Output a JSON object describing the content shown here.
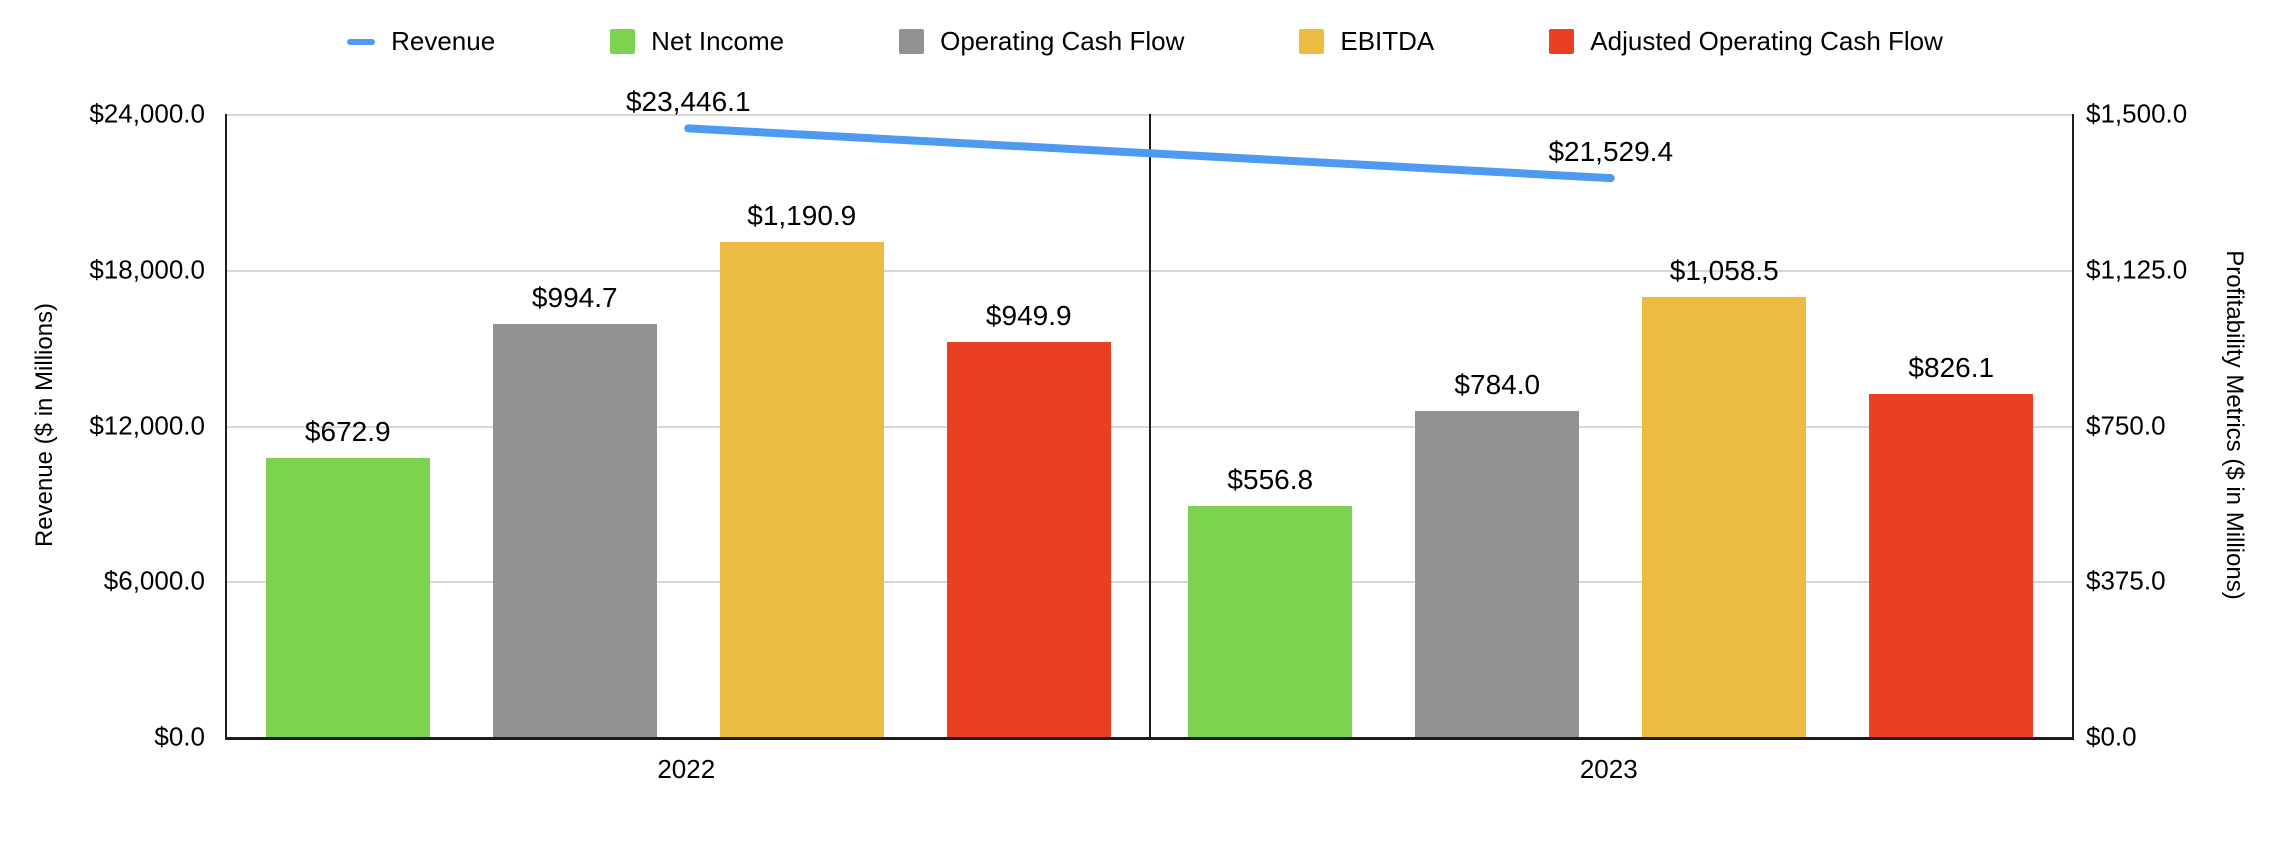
{
  "legend": {
    "items": [
      {
        "label": "Revenue",
        "swatch": "line",
        "color": "#4D9AF0"
      },
      {
        "label": "Net Income",
        "swatch": "square",
        "color": "#7DD24F"
      },
      {
        "label": "Operating Cash Flow",
        "swatch": "square",
        "color": "#929292"
      },
      {
        "label": "EBITDA",
        "swatch": "square",
        "color": "#ECBC42"
      },
      {
        "label": "Adjusted Operating Cash Flow",
        "swatch": "square",
        "color": "#E94023"
      }
    ]
  },
  "chart_data": {
    "type": "bar",
    "subtype": "combo-bar-line-dual-axis",
    "categories": [
      "2022",
      "2023"
    ],
    "series": [
      {
        "name": "Revenue",
        "render": "line",
        "axis": "left",
        "color": "#4D9AF0",
        "values": [
          23446.1,
          21529.4
        ],
        "labels": [
          "$23,446.1",
          "$21,529.4"
        ]
      },
      {
        "name": "Net Income",
        "render": "bar",
        "axis": "right",
        "color": "#7DD24F",
        "values": [
          672.9,
          556.8
        ],
        "labels": [
          "$672.9",
          "$556.8"
        ]
      },
      {
        "name": "Operating Cash Flow",
        "render": "bar",
        "axis": "right",
        "color": "#929292",
        "values": [
          994.7,
          784.0
        ],
        "labels": [
          "$994.7",
          "$784.0"
        ]
      },
      {
        "name": "EBITDA",
        "render": "bar",
        "axis": "right",
        "color": "#ECBC42",
        "values": [
          1190.9,
          1058.5
        ],
        "labels": [
          "$1,190.9",
          "$1,058.5"
        ]
      },
      {
        "name": "Adjusted Operating Cash Flow",
        "render": "bar",
        "axis": "right",
        "color": "#E94023",
        "values": [
          949.9,
          826.1
        ],
        "labels": [
          "$949.9",
          "$826.1"
        ]
      }
    ],
    "left_axis": {
      "title": "Revenue ($ in Millions)",
      "range": [
        0,
        24000
      ],
      "ticks": [
        "$0.0",
        "$6,000.0",
        "$12,000.0",
        "$18,000.0",
        "$24,000.0"
      ]
    },
    "right_axis": {
      "title": "Profitability Metrics ($ in Millions)",
      "range": [
        0,
        1500
      ],
      "ticks": [
        "$0.0",
        "$375.0",
        "$750.0",
        "$1,125.0",
        "$1,500.0"
      ]
    },
    "grid": true,
    "legend_position": "top",
    "gridline_color": "#d7d7d7",
    "axis_line_color": "#1c1c1c"
  }
}
